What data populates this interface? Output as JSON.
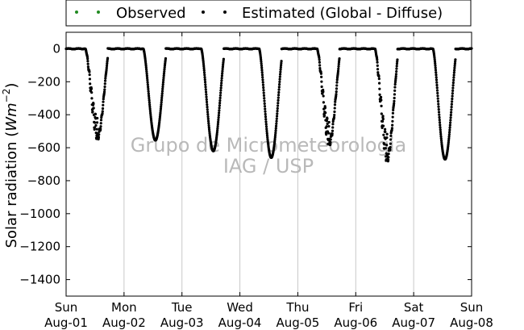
{
  "chart_data": {
    "type": "scatter",
    "title": "",
    "ylabel": "Solar radiation (Wm^-2)",
    "ylabel_main": "Solar radiation (",
    "ylabel_unit": "Wm",
    "ylabel_exp": "−2",
    "ylabel_close": ")",
    "ylim": [
      -1500,
      100
    ],
    "yticks": [
      0,
      -200,
      -400,
      -600,
      -800,
      -1000,
      -1200,
      -1400
    ],
    "xlim": [
      "2014-08-01",
      "2014-08-08"
    ],
    "xticks": [
      {
        "day": "Sun",
        "date": "Aug-01"
      },
      {
        "day": "Mon",
        "date": "Aug-02"
      },
      {
        "day": "Tue",
        "date": "Aug-03"
      },
      {
        "day": "Wed",
        "date": "Aug-04"
      },
      {
        "day": "Thu",
        "date": "Aug-05"
      },
      {
        "day": "Fri",
        "date": "Aug-06"
      },
      {
        "day": "Sat",
        "date": "Aug-07"
      },
      {
        "day": "Sun",
        "date": "Aug-08"
      }
    ],
    "grid": "vertical",
    "legend_position": "top",
    "watermark": [
      "Grupo de Micrometeorologia",
      "IAG / USP"
    ],
    "series": [
      {
        "name": "Observed",
        "color": "#228b22",
        "marker": "dot",
        "values": []
      },
      {
        "name": "Estimated (Global - Diffuse)",
        "color": "#000000",
        "marker": "dot",
        "daily_minimum": [
          {
            "x": "2014-08-01 13:00",
            "y": -555
          },
          {
            "x": "2014-08-02 13:00",
            "y": -555
          },
          {
            "x": "2014-08-03 13:00",
            "y": -620
          },
          {
            "x": "2014-08-04 13:00",
            "y": -660
          },
          {
            "x": "2014-08-05 13:00",
            "y": -590
          },
          {
            "x": "2014-08-06 13:00",
            "y": -690
          },
          {
            "x": "2014-08-07 13:00",
            "y": -670
          }
        ]
      }
    ]
  }
}
